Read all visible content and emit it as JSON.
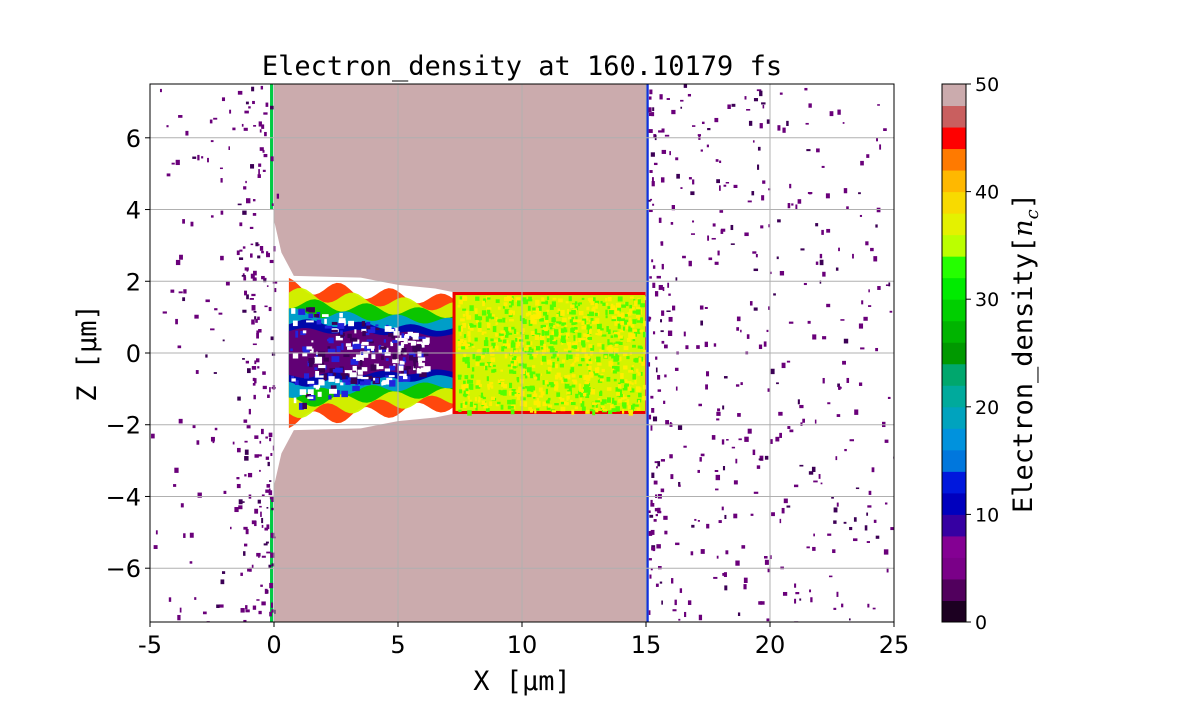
{
  "chart_data": {
    "type": "heatmap",
    "title": "Electron_density at 160.10179 fs",
    "xlabel": "X [μm]",
    "ylabel": "Z [μm]",
    "xlim": [
      -5,
      25
    ],
    "ylim": [
      -7.5,
      7.5
    ],
    "xticks": [
      "-5",
      "0",
      "5",
      "10",
      "15",
      "20",
      "25"
    ],
    "xtick_values": [
      -5,
      0,
      5,
      10,
      15,
      20,
      25
    ],
    "yticks": [
      "6",
      "4",
      "2",
      "0",
      "−2",
      "−4",
      "−6"
    ],
    "ytick_values": [
      6,
      4,
      2,
      0,
      -2,
      -4,
      -6
    ],
    "grid": true,
    "colorbar": {
      "label": "Electron_density[n_c]",
      "label_main": "Electron_density[",
      "label_n": "n",
      "label_sub": "c",
      "label_end": "]",
      "range": [
        0,
        50
      ],
      "ticks": [
        "0",
        "10",
        "20",
        "30",
        "40",
        "50"
      ],
      "tick_values": [
        0,
        10,
        20,
        30,
        40,
        50
      ],
      "colormap": "nipy_spectral",
      "level_step": 2,
      "saturated_color": "#cbabad"
    },
    "regions": {
      "target_x_range": [
        0,
        15
      ],
      "channel_z_halfwidth": 2.1,
      "compressed_plasma_x_range": [
        7.2,
        15
      ],
      "compressed_plasma_z_halfwidth": 1.7,
      "compressed_plasma_density": 32
    }
  }
}
